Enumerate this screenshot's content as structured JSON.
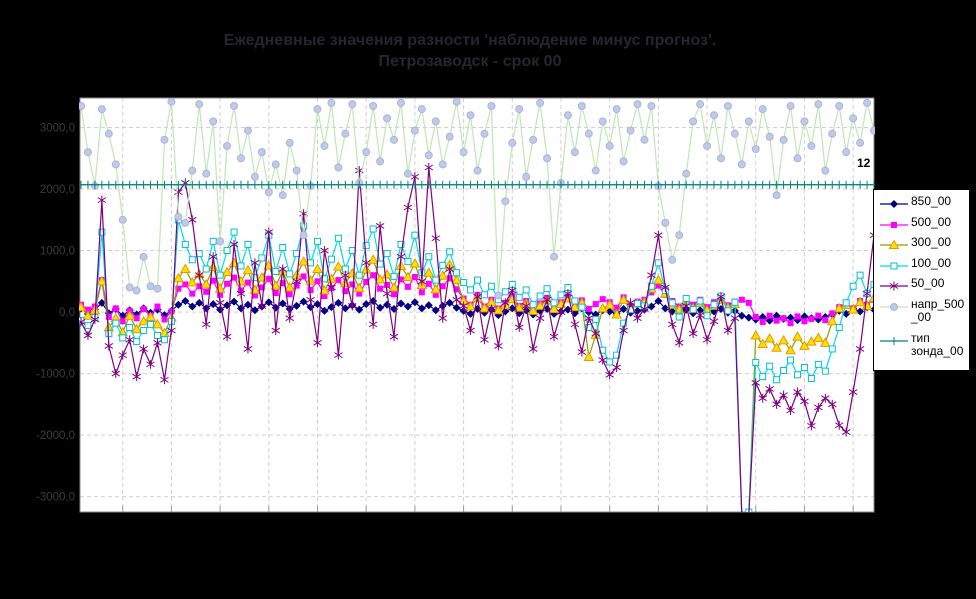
{
  "title": {
    "line1": "Ежедневные значения разности 'наблюдение минус прогноз'.",
    "line2": "Петрозаводск - срок 00"
  },
  "annotation": "12",
  "colors": {
    "background": "#000000",
    "plot_bg": "#FFFFFF",
    "grid": "#D0D0D0",
    "plot_border": "#888888",
    "axis_label": "#3C3C3C",
    "title": "#26262C",
    "tick": "#999999",
    "annotation": "#000000",
    "legend_bg": "#FFFFFF",
    "legend_border": "#000000"
  },
  "legend": {
    "entries": [
      {
        "label": "850_00"
      },
      {
        "label": "500_00"
      },
      {
        "label": "300_00"
      },
      {
        "label": "100_00"
      },
      {
        "label": "50_00"
      },
      {
        "label": "напр_500\n_00"
      },
      {
        "label": "тип\nзонда_00"
      }
    ]
  },
  "chart_data": {
    "type": "line",
    "title": "Ежедневные значения разности 'наблюдение минус прогноз'. Петрозаводск - срок 00",
    "xlabel": "",
    "ylabel": "",
    "n_points": 115,
    "x_mode": "daily values, day index 1..115; x tick labels not visible on black background",
    "x_tick_interval_days": 7,
    "first_tick_day_index": 6,
    "ylim": [
      -3250,
      3480
    ],
    "grid": "dashed light gray, horizontal every 1000, vertical every 7 days",
    "legend_position": "right",
    "y_ticks": [
      {
        "value": 3000,
        "label": "3000,0"
      },
      {
        "value": 2000,
        "label": "2000,0"
      },
      {
        "value": 1000,
        "label": "1000,0"
      },
      {
        "value": 0,
        "label": "0,0"
      },
      {
        "value": -1000,
        "label": "-1000,0"
      },
      {
        "value": -2000,
        "label": "-2000,0"
      },
      {
        "value": -3000,
        "label": "-3000,0"
      }
    ],
    "annotation_last_value_label": "12",
    "series": [
      {
        "name": "850_00",
        "line_color": "#000080",
        "marker": "diamond",
        "marker_fill": "#000080",
        "marker_stroke": "#000080",
        "values": [
          60,
          -30,
          40,
          150,
          -20,
          50,
          -60,
          30,
          -40,
          60,
          -10,
          40,
          -50,
          20,
          120,
          180,
          90,
          150,
          60,
          130,
          40,
          110,
          170,
          60,
          120,
          30,
          90,
          160,
          70,
          140,
          50,
          100,
          170,
          80,
          130,
          20,
          80,
          150,
          60,
          110,
          40,
          130,
          180,
          70,
          120,
          50,
          140,
          90,
          160,
          60,
          110,
          30,
          100,
          150,
          70,
          20,
          -30,
          50,
          -10,
          40,
          -50,
          10,
          60,
          -20,
          30,
          -40,
          20,
          50,
          -30,
          10,
          40,
          -20,
          60,
          0,
          -40,
          30,
          10,
          -30,
          50,
          -10,
          20,
          40,
          90,
          180,
          60,
          10,
          -30,
          40,
          -20,
          30,
          -40,
          10,
          50,
          -10,
          20,
          -60,
          -90,
          -120,
          -80,
          -140,
          -60,
          -110,
          -90,
          -130,
          -70,
          -100,
          -120,
          -80,
          -40,
          20,
          -30,
          60,
          10,
          80,
          40
        ]
      },
      {
        "name": "500_00",
        "line_color": "#FF00FF",
        "marker": "square",
        "marker_fill": "#FF00FF",
        "marker_stroke": "#FF00FF",
        "values": [
          120,
          40,
          90,
          520,
          -80,
          60,
          -150,
          20,
          -100,
          50,
          -60,
          90,
          -120,
          10,
          380,
          450,
          300,
          420,
          330,
          510,
          280,
          460,
          560,
          350,
          480,
          270,
          400,
          540,
          310,
          470,
          290,
          430,
          580,
          360,
          500,
          260,
          390,
          520,
          340,
          450,
          300,
          490,
          600,
          380,
          440,
          290,
          530,
          410,
          570,
          320,
          460,
          280,
          420,
          550,
          370,
          220,
          120,
          280,
          90,
          200,
          60,
          150,
          260,
          100,
          180,
          40,
          140,
          230,
          80,
          160,
          250,
          110,
          190,
          50,
          130,
          210,
          160,
          70,
          240,
          100,
          170,
          200,
          320,
          430,
          280,
          180,
          90,
          220,
          120,
          200,
          80,
          160,
          240,
          110,
          170,
          200,
          150,
          -80,
          -160,
          -60,
          -140,
          -100,
          -180,
          -70,
          -150,
          -110,
          -60,
          -130,
          -20,
          80,
          140,
          60,
          180,
          120,
          200
        ]
      },
      {
        "name": "300_00",
        "line_color": "#8DA000",
        "marker": "triangle",
        "marker_fill": "#FFE000",
        "marker_stroke": "#E89800",
        "values": [
          80,
          -60,
          30,
          500,
          -250,
          -100,
          -330,
          -60,
          -280,
          -150,
          -80,
          -200,
          -340,
          -90,
          550,
          700,
          480,
          620,
          450,
          730,
          380,
          650,
          800,
          500,
          680,
          360,
          560,
          760,
          430,
          660,
          400,
          600,
          820,
          510,
          700,
          350,
          540,
          740,
          470,
          630,
          390,
          690,
          850,
          530,
          610,
          400,
          750,
          570,
          790,
          440,
          640,
          370,
          590,
          770,
          520,
          180,
          90,
          230,
          60,
          160,
          30,
          110,
          210,
          70,
          140,
          20,
          100,
          190,
          50,
          130,
          220,
          80,
          150,
          -730,
          -370,
          60,
          120,
          -40,
          200,
          70,
          140,
          160,
          380,
          520,
          300,
          120,
          40,
          180,
          60,
          150,
          30,
          100,
          200,
          70,
          130,
          -3300,
          -3300,
          -380,
          -520,
          -430,
          -580,
          -460,
          -620,
          -400,
          -550,
          -480,
          -420,
          -500,
          -150,
          60,
          120,
          40,
          160,
          100,
          230
        ]
      },
      {
        "name": "100_00",
        "line_color": "#00DCE8",
        "marker": "square-open",
        "marker_fill": "#FFFFFF",
        "marker_stroke": "#00C0D4",
        "values": [
          -140,
          -220,
          -90,
          1300,
          -350,
          -180,
          -420,
          -250,
          -480,
          -300,
          -200,
          -380,
          -450,
          -150,
          1500,
          1100,
          850,
          950,
          700,
          1150,
          600,
          1000,
          1300,
          750,
          1100,
          560,
          880,
          1250,
          660,
          1050,
          620,
          950,
          1400,
          800,
          1150,
          540,
          860,
          1200,
          700,
          1000,
          600,
          1080,
          1350,
          780,
          950,
          580,
          1100,
          820,
          1250,
          640,
          900,
          520,
          760,
          980,
          640,
          480,
          360,
          520,
          280,
          420,
          200,
          330,
          450,
          240,
          360,
          120,
          260,
          380,
          150,
          280,
          400,
          180,
          80,
          -250,
          -120,
          -620,
          -810,
          -700,
          -180,
          40,
          140,
          100,
          420,
          800,
          350,
          150,
          -80,
          220,
          40,
          180,
          -60,
          120,
          260,
          20,
          160,
          -3300,
          -3250,
          -820,
          -1050,
          -880,
          -1100,
          -950,
          -780,
          -1020,
          -900,
          -1080,
          -850,
          -960,
          -600,
          -250,
          150,
          420,
          600,
          300,
          450
        ]
      },
      {
        "name": "50_00",
        "line_color": "#800080",
        "marker": "star",
        "marker_fill": "#800080",
        "marker_stroke": "#800080",
        "values": [
          -160,
          -380,
          -120,
          1820,
          -550,
          -1000,
          -700,
          -450,
          -1050,
          -600,
          -850,
          -500,
          -1100,
          -300,
          1950,
          2100,
          1500,
          600,
          -200,
          900,
          150,
          -400,
          1100,
          300,
          -600,
          800,
          100,
          1300,
          -300,
          700,
          -100,
          500,
          1600,
          200,
          -500,
          1000,
          400,
          -700,
          600,
          100,
          2300,
          800,
          -200,
          1400,
          300,
          -400,
          900,
          1700,
          2200,
          500,
          2350,
          1200,
          -100,
          700,
          200,
          100,
          -300,
          250,
          -450,
          50,
          -550,
          150,
          350,
          -250,
          100,
          -600,
          -100,
          200,
          -400,
          0,
          300,
          -200,
          -650,
          -100,
          -350,
          -780,
          -1020,
          -900,
          -300,
          150,
          -100,
          50,
          600,
          1250,
          400,
          -200,
          -500,
          100,
          -350,
          -50,
          -450,
          -150,
          250,
          -300,
          -100,
          -3300,
          -3300,
          -1150,
          -1400,
          -1250,
          -1500,
          -1350,
          -1600,
          -1300,
          -1450,
          -1850,
          -1550,
          -1400,
          -1500,
          -1840,
          -1950,
          -1300,
          -600,
          300,
          1250
        ]
      },
      {
        "name": "напр_500_00",
        "line_color": "#BDE8B4",
        "marker": "circle",
        "marker_fill": "#C0C9E8",
        "marker_stroke": "#A8B4DC",
        "values": [
          3350,
          2600,
          2050,
          3300,
          2900,
          2400,
          1500,
          400,
          350,
          900,
          420,
          380,
          2800,
          3420,
          1550,
          1450,
          2300,
          3380,
          2250,
          3100,
          1150,
          2700,
          3350,
          2500,
          2950,
          2200,
          2600,
          1950,
          2400,
          1900,
          2750,
          2300,
          1250,
          2050,
          3300,
          2700,
          3400,
          2350,
          2900,
          3380,
          2100,
          2600,
          3350,
          2450,
          3150,
          2800,
          3400,
          2250,
          2950,
          3300,
          2550,
          3100,
          2400,
          2850,
          3420,
          2600,
          3200,
          2300,
          2900,
          3350,
          270,
          1800,
          2750,
          3300,
          2200,
          2800,
          3400,
          2500,
          900,
          2100,
          3200,
          2600,
          3350,
          2900,
          2300,
          3100,
          2700,
          3300,
          2450,
          2950,
          3380,
          2800,
          3350,
          2050,
          1450,
          850,
          1250,
          2250,
          3100,
          3380,
          2700,
          3200,
          2500,
          3350,
          2900,
          2400,
          3100,
          2650,
          3300,
          2850,
          1900,
          2800,
          3350,
          2500,
          3100,
          2700,
          3380,
          2300,
          2900,
          3350,
          2600,
          3150,
          2750,
          3400,
          2950
        ]
      },
      {
        "name": "тип зонда_00",
        "line_color": "#008080",
        "marker": "plus",
        "marker_fill": "#008080",
        "marker_stroke": "#008080",
        "constant": 2070
      }
    ]
  }
}
